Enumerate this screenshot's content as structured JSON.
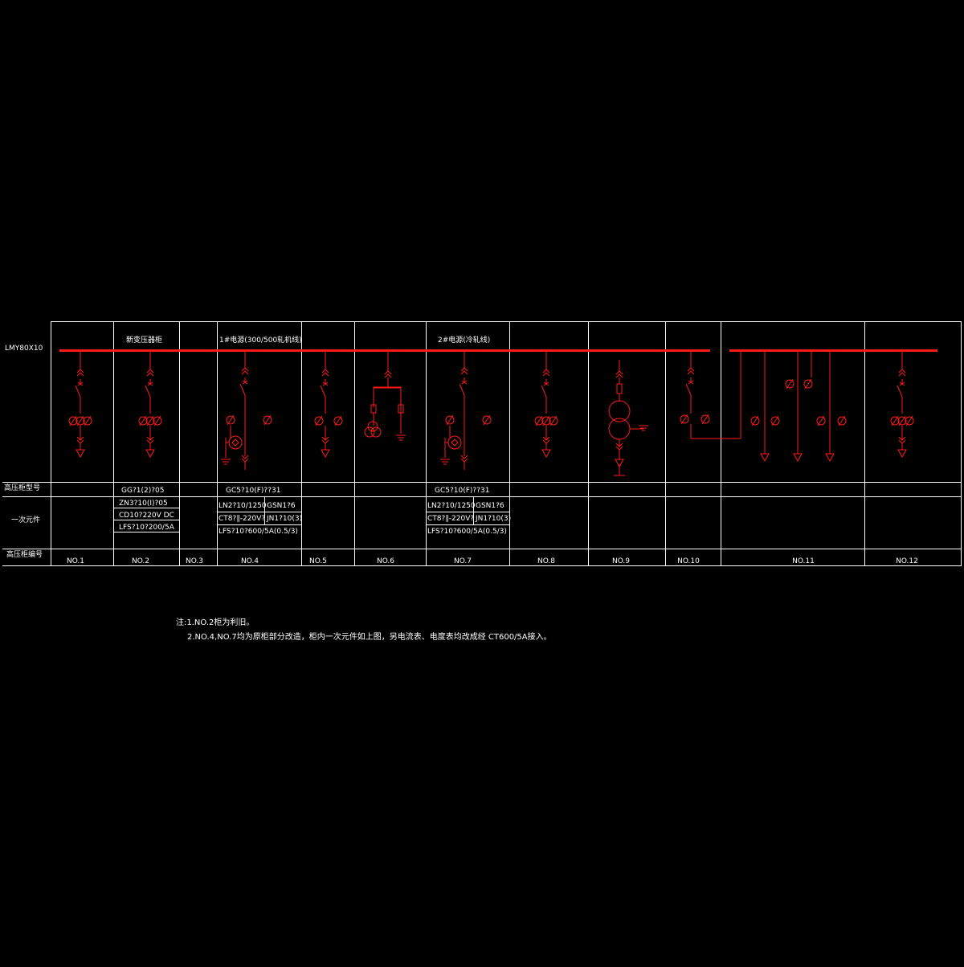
{
  "colors": {
    "background": "#000000",
    "lines": "#ffffff",
    "circuit": "#ff1a1a"
  },
  "busbar_label": "LMY80X10",
  "row_labels": {
    "cabinet_model": "高压柜型号",
    "primary_components": "一次元件",
    "cabinet_number": "高压柜编号"
  },
  "section_titles": {
    "new_transformer_cabinet": "新变压器柜",
    "source_1": "1#电源(300/500轧机线)",
    "source_2": "2#电源(冷轧线)"
  },
  "cabinets": [
    "NO.1",
    "NO.2",
    "NO.3",
    "NO.4",
    "NO.5",
    "NO.6",
    "NO.7",
    "NO.8",
    "NO.9",
    "NO.10",
    "NO.11",
    "NO.12"
  ],
  "cabinet_models": {
    "no2": "GG?1(2)?05",
    "no4": "GC5?10(F)??31",
    "no7": "GC5?10(F)??31"
  },
  "components": {
    "no2": [
      "ZN3?10(I)?05",
      "CD10?220V  DC",
      "LFS?10?200/5A"
    ],
    "no4": {
      "left": [
        "LN2?10/1250",
        "CT8?∥-220V?",
        "LFS?10?600/5A(0.5/3)"
      ],
      "right": [
        "GSN1?6",
        "JN1?10(3)"
      ]
    },
    "no7": {
      "left": [
        "LN2?10/1250",
        "CT8?∥-220V?",
        "LFS?10?600/5A(0.5/3)"
      ],
      "right": [
        "GSN1?6",
        "JN1?10(3)"
      ]
    }
  },
  "notes": {
    "line1": "注:1.NO.2柜为利旧。",
    "line2": "2.NO.4,NO.7均为原柜部分改造，柜内一次元件如上图，另电流表、电度表均改成经 CT600/5A接入。"
  }
}
